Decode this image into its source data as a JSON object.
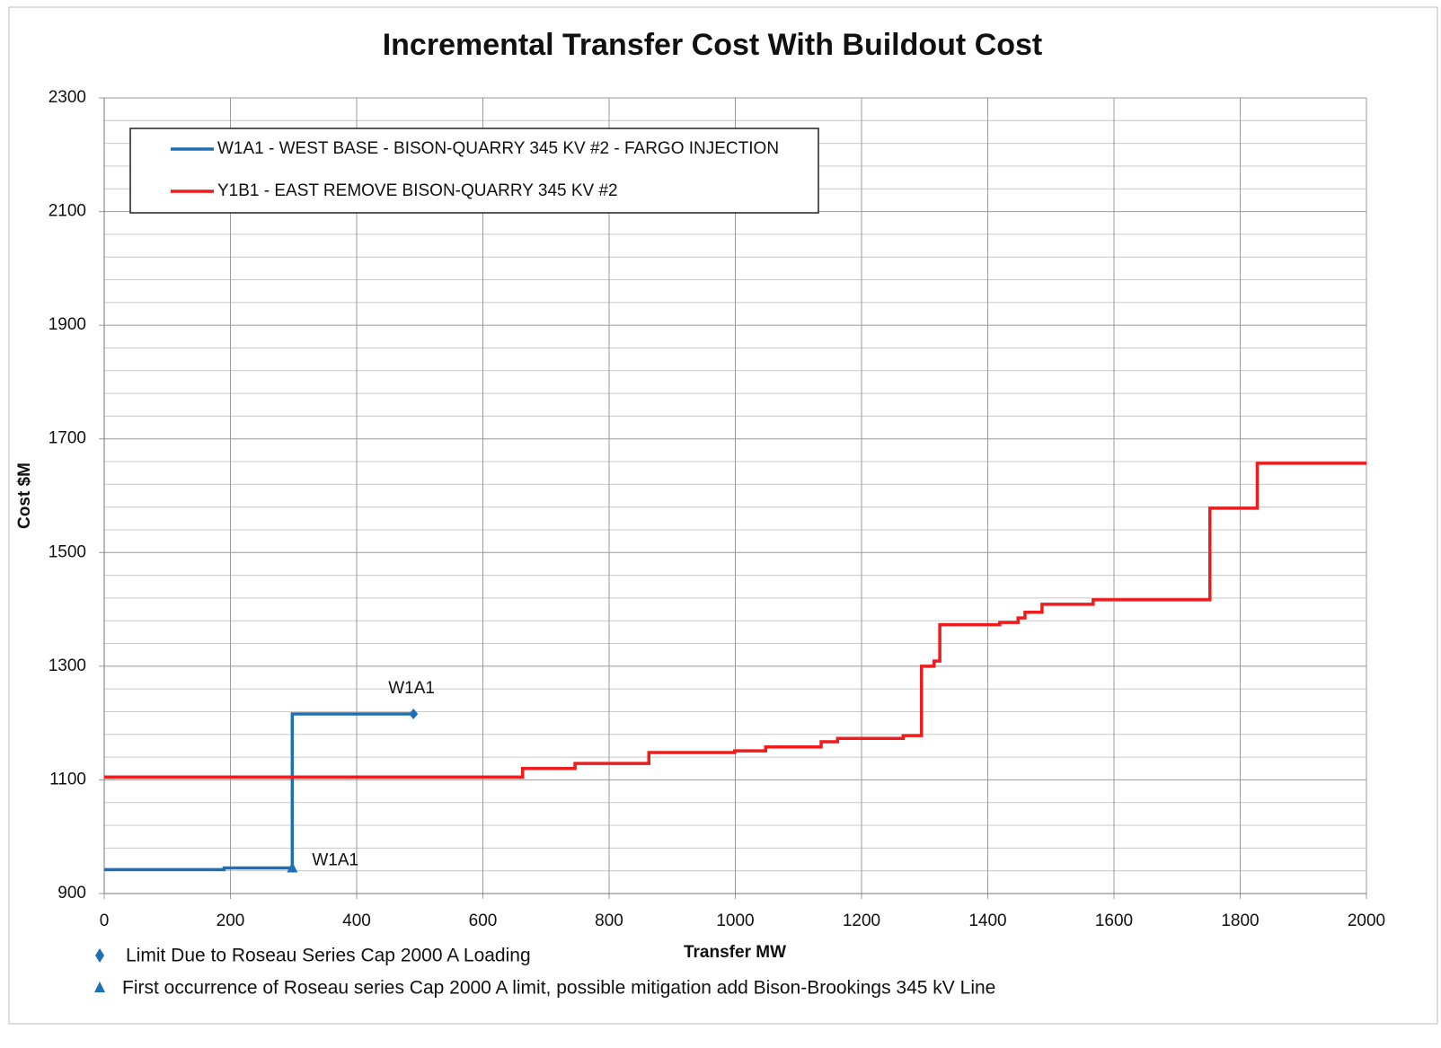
{
  "chart_data": {
    "type": "line",
    "title": "Incremental Transfer Cost With Buildout Cost",
    "x_label": "Transfer MW",
    "y_label": "Cost $M",
    "xlim": [
      0,
      2000
    ],
    "xticks": [
      0,
      200,
      400,
      600,
      800,
      1000,
      1200,
      1400,
      1600,
      1800,
      2000
    ],
    "ylim": [
      900,
      2300
    ],
    "yticks": [
      900,
      1100,
      1300,
      1500,
      1700,
      1900,
      2100,
      2300
    ],
    "yminor_ticks": [
      940,
      980,
      1020,
      1060,
      1140,
      1180,
      1220,
      1260,
      1340,
      1380,
      1420,
      1460,
      1540,
      1580,
      1620,
      1660,
      1740,
      1780,
      1820,
      1860,
      1940,
      1980,
      2020,
      2060,
      2140,
      2180,
      2220,
      2260
    ],
    "grid": true,
    "legend": "upper left",
    "series": [
      {
        "name": "W1A1 - WEST BASE - BISON-QUARRY 345 KV #2 - FARGO INJECTION",
        "color": "#1f6fb4",
        "x": [
          0,
          190,
          190,
          298,
          298,
          490
        ],
        "values": [
          942,
          942,
          945,
          945,
          1216,
          1216
        ]
      },
      {
        "name": "Y1B1 - EAST REMOVE BISON-QUARRY 345 KV #2",
        "color": "#ee1c1c",
        "x": [
          0,
          663,
          663,
          746,
          746,
          863,
          863,
          999,
          999,
          1048,
          1048,
          1136,
          1136,
          1162,
          1162,
          1266,
          1266,
          1295,
          1295,
          1315,
          1315,
          1324,
          1324,
          1419,
          1419,
          1448,
          1448,
          1459,
          1459,
          1486,
          1486,
          1567,
          1567,
          1752,
          1752,
          1827,
          1827,
          2000
        ],
        "values": [
          1105,
          1105,
          1120,
          1120,
          1129,
          1129,
          1148,
          1148,
          1151,
          1151,
          1158,
          1158,
          1167,
          1167,
          1173,
          1173,
          1178,
          1178,
          1300,
          1300,
          1309,
          1309,
          1373,
          1373,
          1377,
          1377,
          1385,
          1385,
          1395,
          1395,
          1409,
          1409,
          1417,
          1417,
          1578,
          1578,
          1657,
          1657
        ]
      }
    ],
    "annotations": [
      "W1A1",
      "W1A1"
    ],
    "marker_notes": [
      "Limit Due to Roseau Series Cap 2000 A Loading",
      "First occurrence of Roseau series Cap 2000 A limit, possible mitigation add Bison-Brookings 345 kV Line"
    ]
  }
}
